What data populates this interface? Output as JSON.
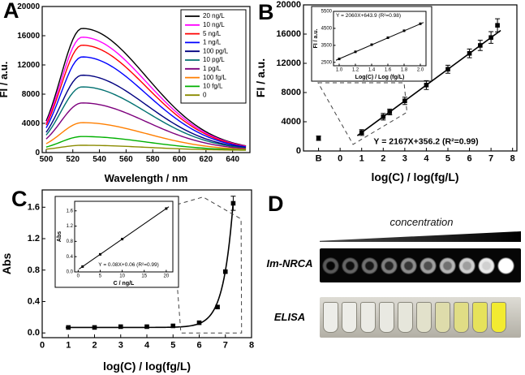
{
  "figure": {
    "background": "#ffffff",
    "panel_letters": {
      "a": "A",
      "b": "B",
      "c": "C",
      "d": "D"
    }
  },
  "chart_data": [
    {
      "id": "A",
      "type": "line",
      "title": "",
      "xlabel": "Wavelength / nm",
      "ylabel": "FI / a.u.",
      "xlim": [
        497,
        653
      ],
      "ylim": [
        0,
        20000
      ],
      "xticks": [
        500,
        520,
        540,
        560,
        580,
        600,
        620,
        640
      ],
      "yticks": [
        0,
        4000,
        8000,
        12000,
        16000,
        20000
      ],
      "peak_wavelength": 527,
      "sigma_left": 16,
      "sigma_right": 48,
      "baseline": 300,
      "legend_position": "upper right",
      "series": [
        {
          "name": "20 ng/L",
          "color": "#000000",
          "peak": 16700
        },
        {
          "name": "10 ng/L",
          "color": "#ff00ff",
          "peak": 15500
        },
        {
          "name": "5 ng/L",
          "color": "#ff0000",
          "peak": 14400
        },
        {
          "name": "1 ng/L",
          "color": "#0000ff",
          "peak": 12800
        },
        {
          "name": "100 pg/L",
          "color": "#000080",
          "peak": 10300
        },
        {
          "name": "10 pg/L",
          "color": "#007070",
          "peak": 8700
        },
        {
          "name": "1 pg/L",
          "color": "#7d007d",
          "peak": 6500
        },
        {
          "name": "100 fg/L",
          "color": "#ff7f00",
          "peak": 3800
        },
        {
          "name": "10 fg/L",
          "color": "#00b000",
          "peak": 1900
        },
        {
          "name": "0",
          "color": "#8b8b00",
          "peak": 700
        }
      ]
    },
    {
      "id": "B",
      "type": "scatter",
      "xlabel": "log(C) / log(fg/L)",
      "ylabel": "FI / a.u.",
      "xlim": [
        -1.7,
        8.2
      ],
      "ylim": [
        0,
        20000
      ],
      "xticks": [
        "B",
        0,
        1,
        2,
        3,
        4,
        5,
        6,
        7,
        8
      ],
      "blank_tick_position": -1.0,
      "yticks": [
        0,
        4000,
        8000,
        12000,
        16000,
        20000
      ],
      "marker_color": "#000000",
      "points": [
        {
          "x": -1.0,
          "y": 1750,
          "err": 300
        },
        {
          "x": 1,
          "y": 2520,
          "err": 400
        },
        {
          "x": 2,
          "y": 4690,
          "err": 450
        },
        {
          "x": 2.3,
          "y": 5340,
          "err": 400
        },
        {
          "x": 3,
          "y": 6860,
          "err": 500
        },
        {
          "x": 4,
          "y": 9020,
          "err": 600
        },
        {
          "x": 5,
          "y": 11190,
          "err": 550
        },
        {
          "x": 6,
          "y": 13360,
          "err": 600
        },
        {
          "x": 6.5,
          "y": 14450,
          "err": 700
        },
        {
          "x": 7,
          "y": 15530,
          "err": 800
        },
        {
          "x": 7.3,
          "y": 17200,
          "err": 900
        }
      ],
      "fit": {
        "slope": 2167,
        "intercept": 356.2,
        "x_range": [
          0.8,
          7.45
        ],
        "equation": "Y = 2167X+356.2 (R²=0.99)"
      },
      "inset": {
        "xlabel": "Log(C) / Log (fg/L)",
        "ylabel": "FI / a.u.",
        "equation": "Y = 2060X+643.9 (R²=0.98)",
        "xlim": [
          0.93,
          2.07
        ],
        "ylim": [
          2300,
          5500
        ],
        "xticks": [
          1.0,
          1.2,
          1.4,
          1.6,
          1.8,
          2.0
        ],
        "yticks": [
          2500,
          3500,
          4500,
          5500
        ],
        "points": [
          [
            1.0,
            2700
          ],
          [
            1.2,
            3120
          ],
          [
            1.4,
            3540
          ],
          [
            1.6,
            3950
          ],
          [
            1.8,
            4360
          ],
          [
            2.0,
            4770
          ]
        ],
        "fit": {
          "slope": 2060,
          "intercept": 643.9,
          "x_range": [
            0.96,
            2.04
          ]
        }
      }
    },
    {
      "id": "C",
      "type": "scatter",
      "xlabel": "log(C) / log(fg/L)",
      "ylabel": "Abs",
      "xlim": [
        0,
        8
      ],
      "ylim": [
        -0.06,
        1.82
      ],
      "xticks": [
        0,
        1,
        2,
        3,
        4,
        5,
        6,
        7,
        8
      ],
      "yticks": [
        "0.0",
        "0.4",
        "0.8",
        "1.2",
        "1.6"
      ],
      "marker_color": "#000000",
      "points": [
        {
          "x": 1,
          "y": 0.07
        },
        {
          "x": 2,
          "y": 0.07
        },
        {
          "x": 3,
          "y": 0.08
        },
        {
          "x": 4,
          "y": 0.08
        },
        {
          "x": 5,
          "y": 0.09
        },
        {
          "x": 6,
          "y": 0.13
        },
        {
          "x": 6.7,
          "y": 0.33
        },
        {
          "x": 7,
          "y": 0.78
        },
        {
          "x": 7.3,
          "y": 1.65,
          "err": 0.09
        }
      ],
      "curve": {
        "base": 0.07,
        "amp": 5.5e-09,
        "rate": 2.67,
        "x_range": [
          0.9,
          7.3
        ]
      },
      "inset": {
        "xlabel": "C / ng/L",
        "ylabel": "Abs",
        "equation": "Y = 0.08X+0.06 (R²=0.99)",
        "xlim": [
          -0.8,
          21.5
        ],
        "ylim": [
          0,
          1.85
        ],
        "xticks": [
          0,
          5,
          10,
          15,
          20
        ],
        "yticks": [
          "0.0",
          "0.4",
          "0.8",
          "1.2",
          "1.6"
        ],
        "points": [
          [
            1,
            0.14
          ],
          [
            5,
            0.46
          ],
          [
            10,
            0.86
          ],
          [
            20,
            1.66
          ]
        ],
        "fit": {
          "slope": 0.08,
          "intercept": 0.06,
          "x_range": [
            0.2,
            20.6
          ]
        }
      }
    },
    {
      "id": "D",
      "type": "image-strip",
      "gradient_label": "concentration",
      "rows": [
        {
          "label": "Im-NRCA",
          "style": "dark-wells",
          "levels": [
            0.1,
            0.16,
            0.22,
            0.3,
            0.38,
            0.48,
            0.6,
            0.74,
            0.88,
            1.0
          ]
        },
        {
          "label": "ELISA",
          "style": "tubes",
          "levels": [
            0.02,
            0.04,
            0.06,
            0.09,
            0.14,
            0.25,
            0.45,
            0.65,
            0.82,
            1.0
          ]
        }
      ]
    }
  ]
}
